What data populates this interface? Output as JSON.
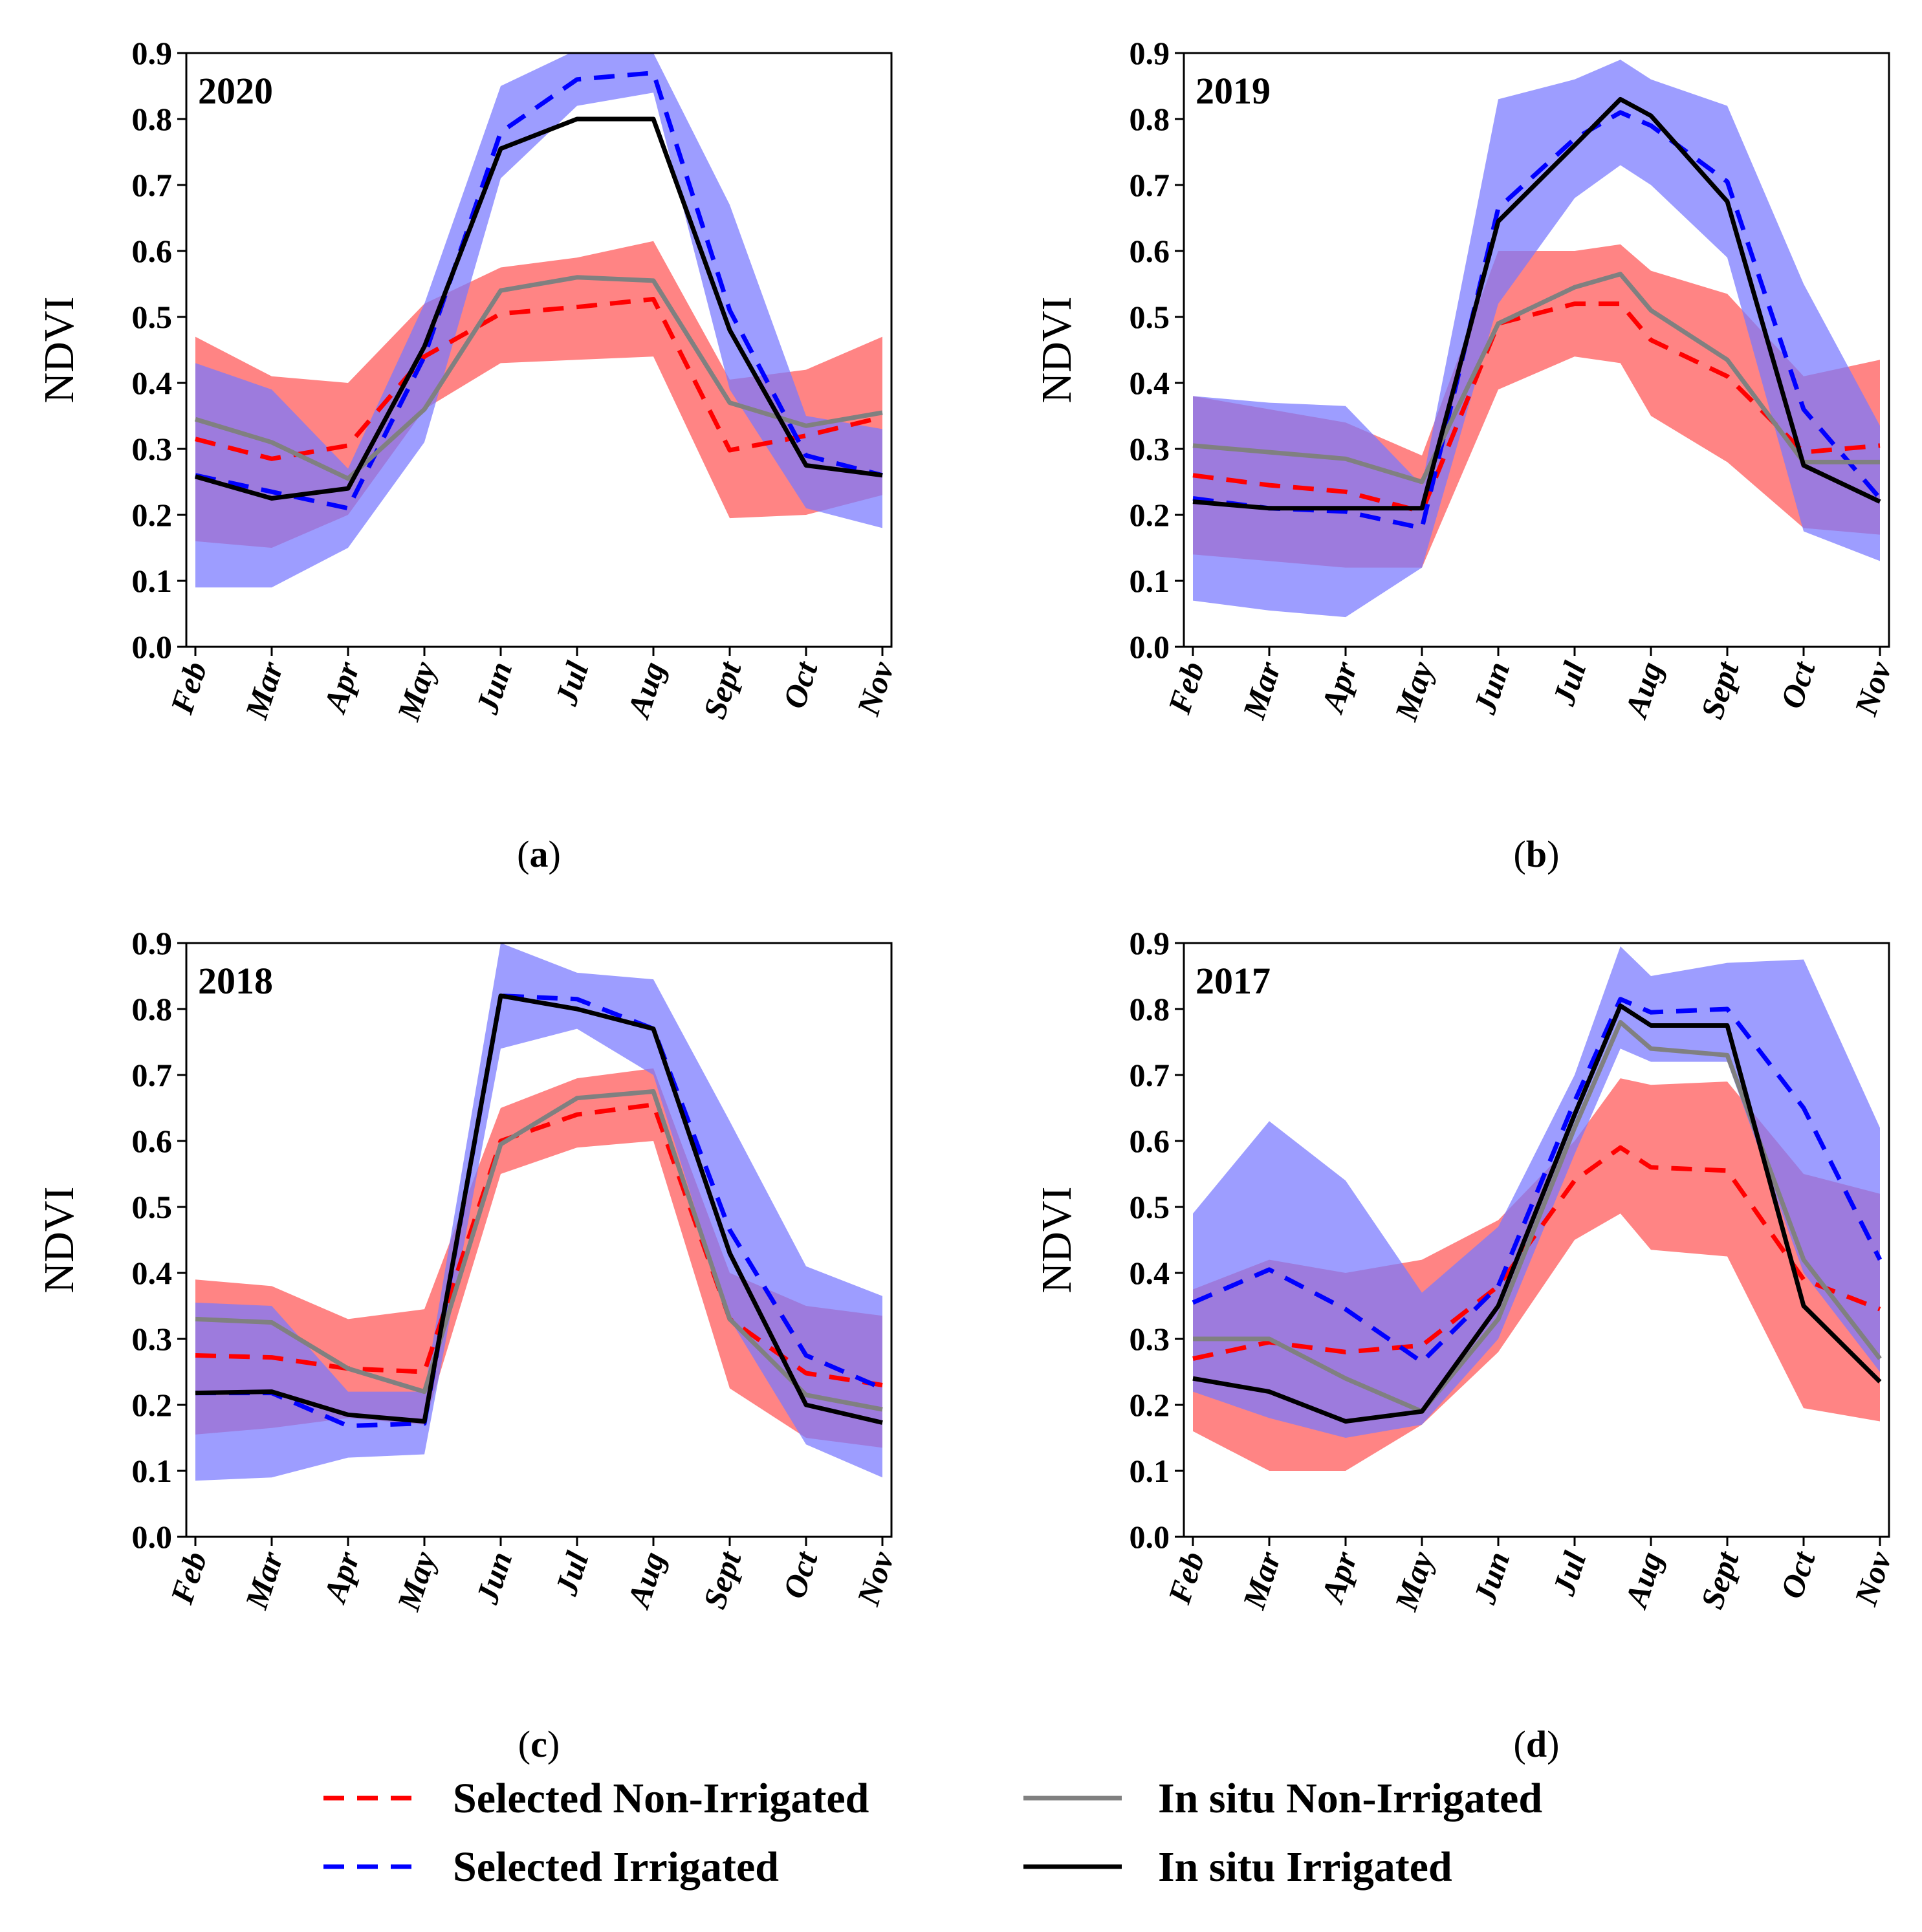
{
  "colors": {
    "selected_non_irrigated": "#ff0000",
    "selected_irrigated": "#0000ff",
    "in_situ_non_irrigated": "#808080",
    "in_situ_irrigated": "#000000",
    "non_irrigated_band": "#ff6e6e",
    "irrigated_band": "#7777ff"
  },
  "legend": [
    {
      "label": "Selected Non-Irrigated",
      "style": "dashed",
      "color": "#ff0000"
    },
    {
      "label": "Selected Irrigated",
      "style": "dashed",
      "color": "#0000ff"
    },
    {
      "label": "In situ Non-Irrigated",
      "style": "solid",
      "color": "#808080"
    },
    {
      "label": "In situ Irrigated",
      "style": "solid",
      "color": "#000000"
    }
  ],
  "chart_data": [
    {
      "type": "line",
      "panel": "(a)",
      "panel_letter": "a",
      "year": "2020",
      "ylabel": "NDVI",
      "ylim": [
        0.0,
        0.9
      ],
      "yticks": [
        "0.0",
        "0.1",
        "0.2",
        "0.3",
        "0.4",
        "0.5",
        "0.6",
        "0.7",
        "0.8",
        "0.9"
      ],
      "categories": [
        "Feb",
        "Mar",
        "Apr",
        "May",
        "Jun",
        "Jul",
        "Aug",
        "Sept",
        "Oct",
        "Nov"
      ],
      "bands": [
        {
          "name": "Selected Non-Irrigated",
          "x": [
            0,
            1,
            2,
            3,
            4,
            5,
            6,
            7,
            8,
            9
          ],
          "lower": [
            0.16,
            0.15,
            0.2,
            0.36,
            0.43,
            0.435,
            0.44,
            0.195,
            0.2,
            0.23
          ],
          "upper": [
            0.47,
            0.41,
            0.4,
            0.52,
            0.575,
            0.59,
            0.615,
            0.405,
            0.42,
            0.47
          ]
        },
        {
          "name": "Selected Irrigated",
          "x": [
            0,
            1,
            2,
            3,
            4,
            5,
            6,
            7,
            8,
            9
          ],
          "lower": [
            0.09,
            0.09,
            0.15,
            0.31,
            0.71,
            0.82,
            0.84,
            0.39,
            0.21,
            0.18
          ],
          "upper": [
            0.43,
            0.39,
            0.27,
            0.52,
            0.85,
            0.905,
            0.9,
            0.67,
            0.35,
            0.33
          ]
        }
      ],
      "series": [
        {
          "name": "Selected Non-Irrigated",
          "x": [
            0,
            1,
            2,
            3,
            4,
            5,
            6,
            7,
            8,
            9
          ],
          "values": [
            0.315,
            0.285,
            0.305,
            0.44,
            0.505,
            0.515,
            0.527,
            0.298,
            0.32,
            0.348
          ]
        },
        {
          "name": "Selected Irrigated",
          "x": [
            0,
            1,
            2,
            3,
            4,
            5,
            6,
            7,
            8,
            9
          ],
          "values": [
            0.26,
            0.235,
            0.21,
            0.44,
            0.78,
            0.86,
            0.87,
            0.51,
            0.29,
            0.26
          ]
        },
        {
          "name": "In situ Non-Irrigated",
          "x": [
            0,
            1,
            2,
            3,
            4,
            5,
            6,
            7,
            8,
            9
          ],
          "values": [
            0.345,
            0.31,
            0.255,
            0.36,
            0.54,
            0.56,
            0.555,
            0.37,
            0.335,
            0.355
          ]
        },
        {
          "name": "In situ Irrigated",
          "x": [
            0,
            1,
            2,
            3,
            4,
            5,
            6,
            7,
            8,
            9
          ],
          "values": [
            0.258,
            0.225,
            0.24,
            0.455,
            0.755,
            0.8,
            0.8,
            0.48,
            0.275,
            0.26
          ]
        }
      ]
    },
    {
      "type": "line",
      "panel": "(b)",
      "panel_letter": "b",
      "year": "2019",
      "ylabel": "NDVI",
      "ylim": [
        0.0,
        0.9
      ],
      "yticks": [
        "0.0",
        "0.1",
        "0.2",
        "0.3",
        "0.4",
        "0.5",
        "0.6",
        "0.7",
        "0.8",
        "0.9"
      ],
      "categories": [
        "Feb",
        "Mar",
        "Apr",
        "May",
        "Jun",
        "Jul",
        "Aug",
        "Sept",
        "Oct",
        "Nov"
      ],
      "bands": [
        {
          "name": "Selected Non-Irrigated",
          "x": [
            0,
            1,
            2,
            3,
            4,
            5,
            5.6,
            6,
            7,
            8,
            9
          ],
          "lower": [
            0.14,
            0.13,
            0.12,
            0.12,
            0.39,
            0.44,
            0.43,
            0.35,
            0.28,
            0.18,
            0.17
          ],
          "upper": [
            0.38,
            0.36,
            0.34,
            0.29,
            0.6,
            0.6,
            0.61,
            0.57,
            0.535,
            0.41,
            0.435
          ]
        },
        {
          "name": "Selected Irrigated",
          "x": [
            0,
            1,
            2,
            3,
            4,
            5,
            5.6,
            6,
            7,
            8,
            9
          ],
          "lower": [
            0.07,
            0.055,
            0.045,
            0.12,
            0.52,
            0.68,
            0.73,
            0.7,
            0.59,
            0.175,
            0.13
          ]
        },
        {
          "name": "Selected Irrigated Upper",
          "x": [
            0,
            1,
            2,
            3,
            4,
            5,
            5.6,
            6,
            7,
            8,
            9
          ],
          "upper": [
            0.38,
            0.37,
            0.365,
            0.245,
            0.83,
            0.86,
            0.89,
            0.86,
            0.82,
            0.55,
            0.335
          ]
        }
      ],
      "series": [
        {
          "name": "Selected Non-Irrigated",
          "x": [
            0,
            1,
            2,
            3,
            4,
            5,
            5.6,
            6,
            7,
            8,
            9
          ],
          "values": [
            0.26,
            0.245,
            0.235,
            0.205,
            0.49,
            0.52,
            0.52,
            0.465,
            0.41,
            0.295,
            0.305
          ]
        },
        {
          "name": "Selected Irrigated",
          "x": [
            0,
            1,
            2,
            3,
            4,
            5,
            5.6,
            6,
            7,
            8,
            9
          ],
          "values": [
            0.225,
            0.21,
            0.205,
            0.18,
            0.665,
            0.77,
            0.81,
            0.79,
            0.705,
            0.36,
            0.225
          ]
        },
        {
          "name": "In situ Non-Irrigated",
          "x": [
            0,
            1,
            2,
            3,
            4,
            5,
            5.6,
            6,
            7,
            8,
            9
          ],
          "values": [
            0.305,
            0.295,
            0.285,
            0.25,
            0.49,
            0.545,
            0.565,
            0.51,
            0.435,
            0.28,
            0.28
          ]
        },
        {
          "name": "In situ Irrigated",
          "x": [
            0,
            1,
            2,
            3,
            4,
            5,
            5.6,
            6,
            7,
            8,
            9
          ],
          "values": [
            0.22,
            0.21,
            0.21,
            0.21,
            0.645,
            0.76,
            0.83,
            0.805,
            0.675,
            0.275,
            0.22
          ]
        }
      ]
    },
    {
      "type": "line",
      "panel": "(c)",
      "panel_letter": "c",
      "year": "2018",
      "ylabel": "NDVI",
      "ylim": [
        0.0,
        0.9
      ],
      "yticks": [
        "0.0",
        "0.1",
        "0.2",
        "0.3",
        "0.4",
        "0.5",
        "0.6",
        "0.7",
        "0.8",
        "0.9"
      ],
      "categories": [
        "Feb",
        "Mar",
        "Apr",
        "May",
        "Jun",
        "Jul",
        "Aug",
        "Sept",
        "Oct",
        "Nov"
      ],
      "bands": [
        {
          "name": "Selected Non-Irrigated",
          "x": [
            0,
            1,
            2,
            3,
            4,
            5,
            6,
            7,
            8,
            9
          ],
          "lower": [
            0.155,
            0.165,
            0.18,
            0.17,
            0.55,
            0.59,
            0.6,
            0.225,
            0.15,
            0.135
          ],
          "upper": [
            0.39,
            0.38,
            0.33,
            0.345,
            0.65,
            0.695,
            0.71,
            0.4,
            0.35,
            0.335
          ]
        },
        {
          "name": "Selected Irrigated",
          "x": [
            0,
            1,
            2,
            3,
            4,
            5,
            6,
            7,
            8,
            9
          ],
          "lower": [
            0.085,
            0.09,
            0.12,
            0.125,
            0.74,
            0.77,
            0.7,
            0.33,
            0.14,
            0.09
          ],
          "upper": [
            0.355,
            0.35,
            0.22,
            0.22,
            0.9,
            0.855,
            0.845,
            0.63,
            0.41,
            0.365
          ]
        }
      ],
      "series": [
        {
          "name": "Selected Non-Irrigated",
          "x": [
            0,
            1,
            2,
            3,
            4,
            5,
            6,
            7,
            8,
            9
          ],
          "values": [
            0.275,
            0.272,
            0.255,
            0.25,
            0.6,
            0.64,
            0.655,
            0.33,
            0.248,
            0.23
          ]
        },
        {
          "name": "Selected Irrigated",
          "x": [
            0,
            1,
            2,
            3,
            4,
            5,
            6,
            7,
            8,
            9
          ],
          "values": [
            0.218,
            0.218,
            0.168,
            0.172,
            0.82,
            0.815,
            0.77,
            0.465,
            0.275,
            0.225
          ]
        },
        {
          "name": "In situ Non-Irrigated",
          "x": [
            0,
            1,
            2,
            3,
            4,
            5,
            6,
            7,
            8,
            9
          ],
          "values": [
            0.33,
            0.325,
            0.255,
            0.22,
            0.595,
            0.665,
            0.675,
            0.33,
            0.215,
            0.193
          ]
        },
        {
          "name": "In situ Irrigated",
          "x": [
            0,
            1,
            2,
            3,
            4,
            5,
            6,
            7,
            8,
            9
          ],
          "values": [
            0.218,
            0.22,
            0.185,
            0.175,
            0.82,
            0.8,
            0.77,
            0.43,
            0.2,
            0.173
          ]
        }
      ]
    },
    {
      "type": "line",
      "panel": "(d)",
      "panel_letter": "d",
      "year": "2017",
      "ylabel": "NDVI",
      "ylim": [
        0.0,
        0.9
      ],
      "yticks": [
        "0.0",
        "0.1",
        "0.2",
        "0.3",
        "0.4",
        "0.5",
        "0.6",
        "0.7",
        "0.8",
        "0.9"
      ],
      "categories": [
        "Feb",
        "Mar",
        "Apr",
        "May",
        "Jun",
        "Jul",
        "Aug",
        "Sept",
        "Oct",
        "Nov"
      ],
      "bands": [
        {
          "name": "Selected Non-Irrigated",
          "x": [
            0,
            1,
            2,
            3,
            4,
            5,
            5.6,
            6,
            7,
            8,
            9
          ],
          "lower": [
            0.16,
            0.1,
            0.1,
            0.17,
            0.28,
            0.45,
            0.49,
            0.435,
            0.425,
            0.195,
            0.175
          ],
          "upper": [
            0.375,
            0.42,
            0.4,
            0.42,
            0.48,
            0.6,
            0.695,
            0.685,
            0.69,
            0.55,
            0.52
          ]
        },
        {
          "name": "Selected Irrigated",
          "x": [
            0,
            1,
            2,
            3,
            4,
            5,
            5.6,
            6,
            7,
            8,
            9
          ],
          "lower": [
            0.22,
            0.18,
            0.15,
            0.17,
            0.3,
            0.58,
            0.74,
            0.72,
            0.72,
            0.4,
            0.25
          ],
          "upper": [
            0.49,
            0.63,
            0.54,
            0.37,
            0.47,
            0.7,
            0.895,
            0.85,
            0.87,
            0.875,
            0.62
          ]
        }
      ],
      "series": [
        {
          "name": "Selected Non-Irrigated",
          "x": [
            0,
            1,
            2,
            3,
            4,
            5,
            5.6,
            6,
            7,
            8,
            9
          ],
          "values": [
            0.27,
            0.295,
            0.28,
            0.29,
            0.38,
            0.54,
            0.59,
            0.56,
            0.555,
            0.39,
            0.345
          ]
        },
        {
          "name": "Selected Irrigated",
          "x": [
            0,
            1,
            2,
            3,
            4,
            5,
            5.6,
            6,
            7,
            8,
            9
          ],
          "values": [
            0.355,
            0.405,
            0.345,
            0.265,
            0.38,
            0.66,
            0.815,
            0.795,
            0.8,
            0.65,
            0.42
          ]
        },
        {
          "name": "In situ Non-Irrigated",
          "x": [
            0,
            1,
            2,
            3,
            4,
            5,
            5.6,
            6,
            7,
            8,
            9
          ],
          "values": [
            0.3,
            0.3,
            0.24,
            0.19,
            0.33,
            0.62,
            0.78,
            0.74,
            0.73,
            0.42,
            0.27
          ]
        },
        {
          "name": "In situ Irrigated",
          "x": [
            0,
            1,
            2,
            3,
            4,
            5,
            5.6,
            6,
            7,
            8,
            9
          ],
          "values": [
            0.24,
            0.22,
            0.175,
            0.19,
            0.35,
            0.64,
            0.805,
            0.775,
            0.775,
            0.35,
            0.235
          ]
        }
      ]
    }
  ]
}
